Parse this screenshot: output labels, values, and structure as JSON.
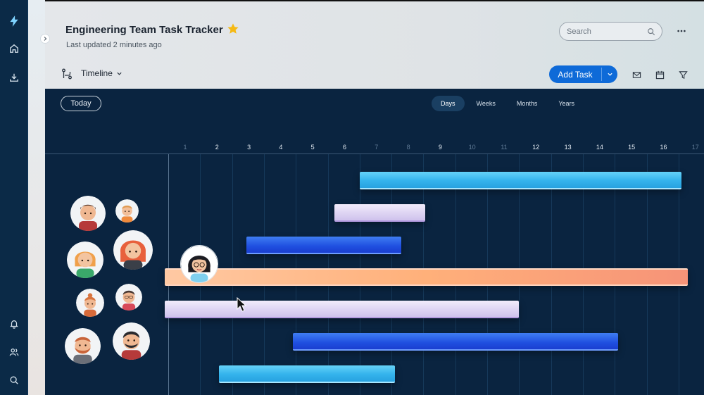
{
  "app": {
    "title": "Engineering Team Task Tracker",
    "last_updated": "Last updated 2 minutes ago",
    "accent": "#0e6ad8",
    "star_color": "#f5b914"
  },
  "rail": {
    "items": [
      {
        "icon": "app-logo-icon"
      },
      {
        "icon": "home-icon"
      },
      {
        "icon": "download-icon"
      },
      {
        "icon": "bell-icon"
      },
      {
        "icon": "users-icon"
      },
      {
        "icon": "search-icon"
      }
    ]
  },
  "search": {
    "placeholder": "Search"
  },
  "toolbar": {
    "view_label": "Timeline",
    "add_task_label": "Add Task"
  },
  "timeline": {
    "today_label": "Today",
    "scales": [
      "Days",
      "Weeks",
      "Months",
      "Years"
    ],
    "active_scale": "Days",
    "days": [
      "1",
      "2",
      "3",
      "4",
      "5",
      "6",
      "7",
      "8",
      "9",
      "10",
      "11",
      "12",
      "13",
      "14",
      "15",
      "16",
      "17"
    ],
    "dim_days": [
      "1",
      "7",
      "8",
      "10",
      "11",
      "17"
    ]
  },
  "tasks": [
    {
      "color": "sky",
      "start_day": 7,
      "end_day": 17.1
    },
    {
      "color": "lavender",
      "start_day": 6.2,
      "end_day": 9.05
    },
    {
      "color": "blue",
      "start_day": 3.45,
      "end_day": 8.3
    },
    {
      "color": "peach",
      "start_day": 0.9,
      "end_day": 17.3
    },
    {
      "color": "lavender",
      "start_day": 0.9,
      "end_day": 12.0
    },
    {
      "color": "blue",
      "start_day": 4.9,
      "end_day": 15.1
    },
    {
      "color": "sky",
      "start_day": 2.6,
      "end_day": 8.1
    }
  ]
}
